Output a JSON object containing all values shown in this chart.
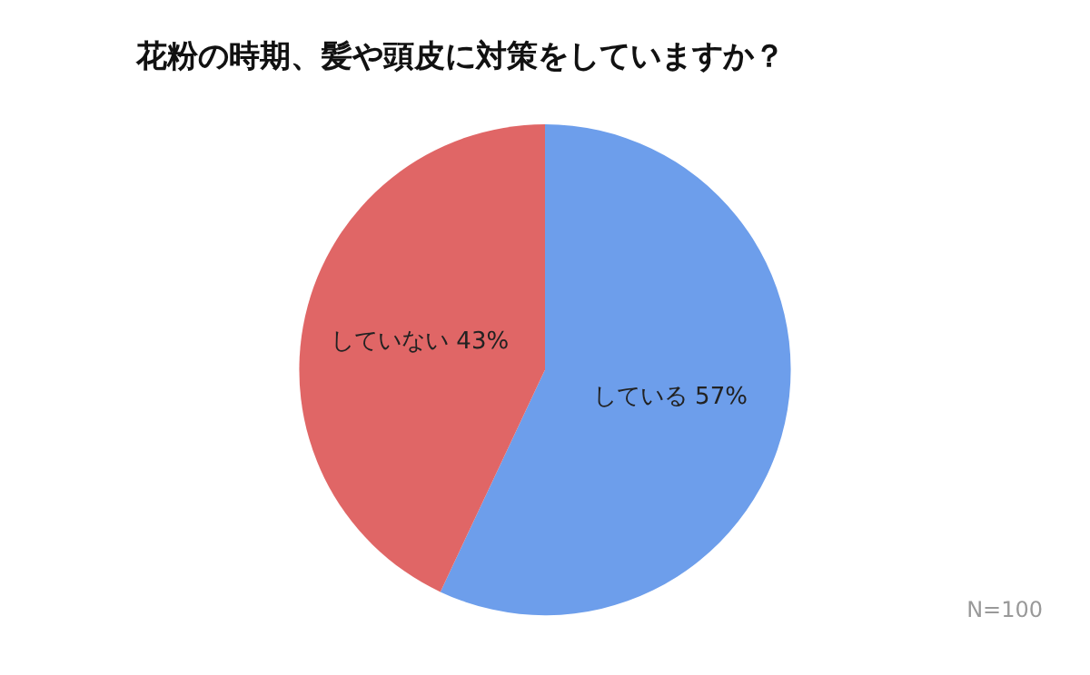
{
  "chart_data": {
    "type": "pie",
    "title": "花粉の時期、髪や頭皮に対策をしていますか？",
    "categories": [
      "している",
      "していない"
    ],
    "values": [
      57,
      43
    ],
    "value_labels": [
      "57%",
      "43%"
    ],
    "colors": [
      "#6d9eeb",
      "#e06666"
    ],
    "annotations": [
      "N=100"
    ],
    "legend": false
  }
}
